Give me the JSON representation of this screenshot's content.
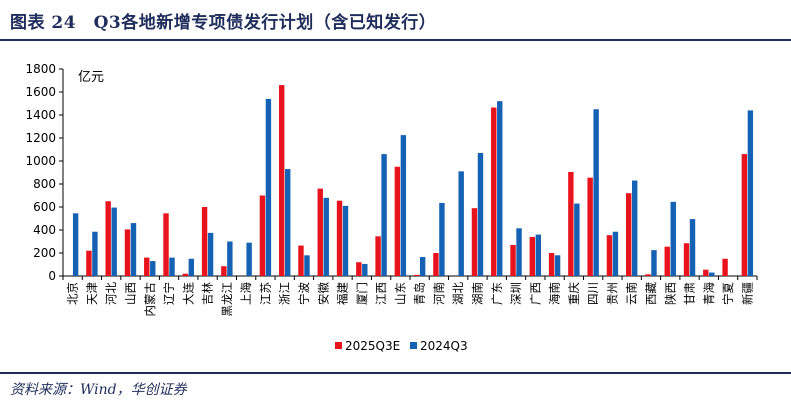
{
  "figure": {
    "title": "图表 24　Q3各地新增专项债发行计划（含已知发行）",
    "source": "资料来源：Wind，华创证券"
  },
  "colors": {
    "series_2025": "#e8131c",
    "series_2024": "#1561b4",
    "axis": "#000000",
    "title": "#1f2d5c"
  },
  "chart_data": {
    "type": "bar",
    "unit_label": "亿元",
    "ylim": [
      0,
      1800
    ],
    "yticks": [
      0,
      200,
      400,
      600,
      800,
      1000,
      1200,
      1400,
      1600,
      1800
    ],
    "grid": false,
    "legend_position": "bottom-center",
    "categories": [
      "北京",
      "天津",
      "河北",
      "山西",
      "内蒙古",
      "辽宁",
      "大连",
      "吉林",
      "黑龙江",
      "上海",
      "江苏",
      "浙江",
      "宁波",
      "安徽",
      "福建",
      "厦门",
      "江西",
      "山东",
      "青岛",
      "河南",
      "湖北",
      "湖南",
      "广东",
      "深圳",
      "广西",
      "海南",
      "重庆",
      "四川",
      "贵州",
      "云南",
      "西藏",
      "陕西",
      "甘肃",
      "青海",
      "宁夏",
      "新疆"
    ],
    "series": [
      {
        "name": "2025Q3E",
        "color": "#e8131c",
        "values": [
          0,
          220,
          650,
          405,
          160,
          545,
          20,
          600,
          85,
          0,
          700,
          1660,
          265,
          760,
          655,
          120,
          345,
          950,
          10,
          200,
          0,
          590,
          1465,
          270,
          340,
          200,
          905,
          855,
          355,
          720,
          15,
          255,
          285,
          55,
          150,
          1060
        ]
      },
      {
        "name": "2024Q3",
        "color": "#1561b4",
        "values": [
          545,
          385,
          595,
          460,
          130,
          160,
          150,
          375,
          300,
          290,
          1540,
          930,
          180,
          680,
          610,
          105,
          1060,
          1225,
          165,
          635,
          910,
          1070,
          1520,
          415,
          360,
          180,
          630,
          1450,
          385,
          830,
          225,
          645,
          495,
          30,
          0,
          1440
        ]
      }
    ]
  }
}
